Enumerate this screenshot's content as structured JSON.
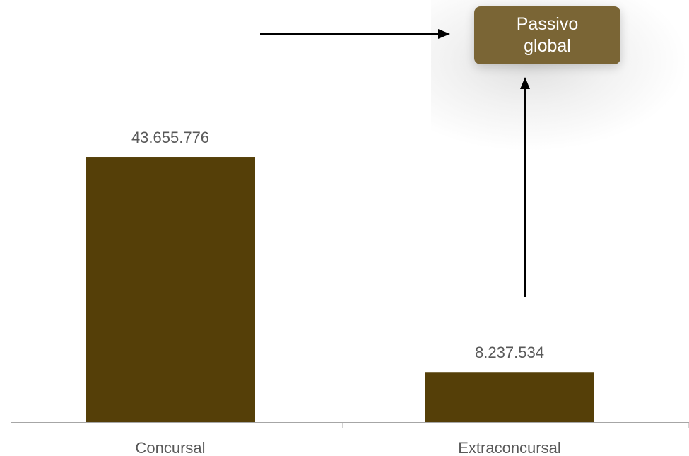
{
  "chart_data": {
    "type": "bar",
    "categories": [
      "Concursal",
      "Extraconcursal"
    ],
    "values": [
      43655776,
      8237534
    ],
    "data_labels": [
      "43.655.776",
      "8.237.534"
    ],
    "title": "",
    "xlabel": "",
    "ylabel": "",
    "ylim": [
      0,
      56000000
    ],
    "grid": false,
    "legend": "none",
    "bar_color": "#553f08",
    "axis_color": "#a6a6a6",
    "label_color": "#595959"
  },
  "annotation": {
    "text": "Passivo global",
    "box_color": "#7a6535",
    "text_color": "#ffffff",
    "arrow_color": "#000000"
  }
}
